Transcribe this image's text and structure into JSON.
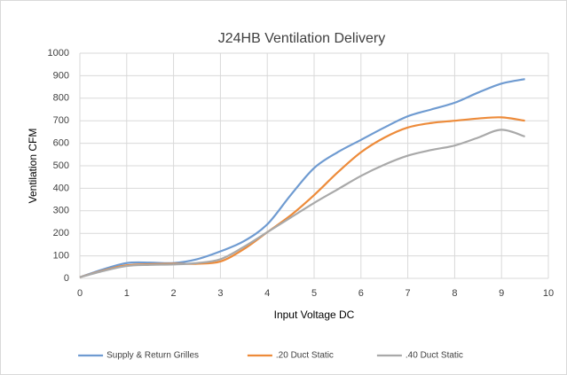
{
  "chart_data": {
    "type": "line",
    "title": "J24HB Ventilation Delivery",
    "x_label": "Input Voltage DC",
    "y_label": "Ventilation CFM",
    "x": [
      0,
      0.5,
      1,
      1.5,
      2,
      2.5,
      3,
      3.5,
      4,
      4.5,
      5,
      5.5,
      6,
      6.5,
      7,
      7.5,
      8,
      8.5,
      9,
      9.5
    ],
    "series": [
      {
        "name": "Supply & Return Grilles",
        "color": "#6f9bd1",
        "values": [
          5,
          40,
          68,
          70,
          68,
          85,
          120,
          165,
          240,
          370,
          490,
          560,
          615,
          670,
          720,
          750,
          780,
          825,
          865,
          885
        ]
      },
      {
        "name": ".20 Duct Static",
        "color": "#ed8b3a",
        "values": [
          5,
          35,
          58,
          63,
          65,
          65,
          75,
          130,
          205,
          280,
          370,
          470,
          560,
          625,
          670,
          690,
          700,
          710,
          715,
          700
        ]
      },
      {
        "name": ".40 Duct Static",
        "color": "#a9a9a9",
        "values": [
          5,
          33,
          55,
          60,
          62,
          68,
          85,
          140,
          205,
          270,
          335,
          395,
          455,
          505,
          545,
          570,
          590,
          625,
          660,
          630
        ]
      }
    ],
    "xlim": [
      0,
      10
    ],
    "xticks": [
      0,
      1,
      2,
      3,
      4,
      5,
      6,
      7,
      8,
      9,
      10
    ],
    "ylim": [
      0,
      1000
    ],
    "yticks": [
      0,
      100,
      200,
      300,
      400,
      500,
      600,
      700,
      800,
      900,
      1000
    ],
    "grid": true,
    "legend": "bottom"
  }
}
